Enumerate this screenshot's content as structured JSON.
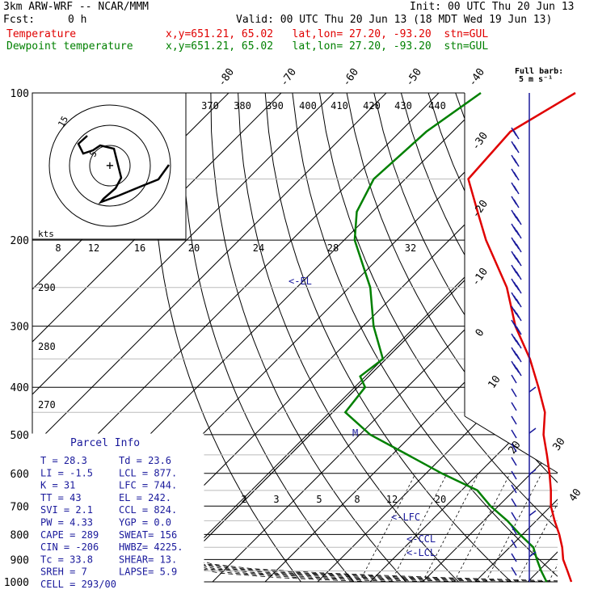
{
  "header": {
    "model": "3km ARW-WRF -- NCAR/MMM",
    "init": "Init: 00 UTC Thu 20 Jun 13",
    "fcst_label": "Fcst:",
    "fcst_value": "0 h",
    "valid": "Valid: 00 UTC Thu 20 Jun 13 (18 MDT Wed 19 Jun 13)",
    "temp_label": "Temperature",
    "temp_info": "x,y=651.21, 65.02   lat,lon= 27.20, -93.20  stn=GUL",
    "dew_label": "Dewpoint temperature",
    "dew_info": "x,y=651.21, 65.02   lat,lon= 27.20, -93.20  stn=GUL",
    "barb_title1": "Full barb:",
    "barb_title2": "5 m s⁻¹"
  },
  "colors": {
    "temperature": "#e00000",
    "dewpoint": "#008000",
    "barbs": "#1a1a9c",
    "labels": "#1a1a9c"
  },
  "hodograph": {
    "kts_label": "kts",
    "ring_labels": [
      "15",
      "5"
    ]
  },
  "parcel_info": {
    "title": "Parcel Info",
    "rows": [
      [
        "T  =   28.3",
        "Td =  23.6"
      ],
      [
        "LI =   -1.5",
        "LCL =  877."
      ],
      [
        "K  =     31",
        "LFC =  744."
      ],
      [
        "TT =     43",
        "EL  =  242."
      ],
      [
        "SVI =   2.1",
        "CCL =  824."
      ],
      [
        "PW =   4.33",
        "YGP =   0.0"
      ],
      [
        "CAPE =  289",
        "SWEAT=  156"
      ],
      [
        "CIN =  -206",
        "HWBZ= 4225."
      ],
      [
        "Tc =   33.8",
        "SHEAR=  13."
      ],
      [
        "SREH =    7",
        "LAPSE=  5.9"
      ],
      [
        "CELL = 293/00",
        ""
      ]
    ]
  },
  "chart_data": {
    "type": "line",
    "diagram": "skew-T log-p",
    "y_axis": {
      "label": "",
      "scale": "log",
      "ticks": [
        100,
        200,
        300,
        400,
        500,
        600,
        700,
        800,
        900,
        1000
      ]
    },
    "isotherm_labels": [
      -80,
      -70,
      -60,
      -50,
      -40,
      -30,
      -20,
      -10,
      0,
      10,
      20,
      30,
      40
    ],
    "theta_labels": [
      370,
      380,
      390,
      400,
      410,
      420,
      430,
      440
    ],
    "low_theta_labels": [
      290,
      280,
      270
    ],
    "mixing_ratio_top": [
      8,
      12,
      16,
      20,
      24,
      28,
      32
    ],
    "mixing_ratio_bottom": [
      2,
      3,
      5,
      8,
      12,
      20
    ],
    "levels": [
      {
        "text": "<-EL"
      },
      {
        "text": "M"
      },
      {
        "text": "<-LFC"
      },
      {
        "text": "<-CCL"
      },
      {
        "text": "<-LCL"
      }
    ],
    "series": [
      {
        "name": "Temperature",
        "points": [
          [
            100,
            -64
          ],
          [
            120,
            -69
          ],
          [
            150,
            -68
          ],
          [
            175,
            -60
          ],
          [
            200,
            -53
          ],
          [
            250,
            -40
          ],
          [
            300,
            -31
          ],
          [
            350,
            -22
          ],
          [
            400,
            -15
          ],
          [
            450,
            -9
          ],
          [
            500,
            -5
          ],
          [
            550,
            -0.5
          ],
          [
            600,
            3.5
          ],
          [
            650,
            7
          ],
          [
            700,
            10
          ],
          [
            750,
            13.5
          ],
          [
            800,
            17
          ],
          [
            850,
            20
          ],
          [
            900,
            22.5
          ],
          [
            950,
            25.5
          ],
          [
            1000,
            28.3
          ]
        ]
      },
      {
        "name": "Dewpoint temperature",
        "points": [
          [
            100,
            -82
          ],
          [
            120,
            -85
          ],
          [
            150,
            -86
          ],
          [
            175,
            -83
          ],
          [
            200,
            -78
          ],
          [
            250,
            -66
          ],
          [
            300,
            -58
          ],
          [
            350,
            -50
          ],
          [
            380,
            -51
          ],
          [
            400,
            -48
          ],
          [
            450,
            -47
          ],
          [
            500,
            -38
          ],
          [
            550,
            -27
          ],
          [
            600,
            -17
          ],
          [
            650,
            -7
          ],
          [
            700,
            -1.5
          ],
          [
            750,
            4.5
          ],
          [
            800,
            9.5
          ],
          [
            850,
            14.5
          ],
          [
            900,
            17.5
          ],
          [
            950,
            20.5
          ],
          [
            1000,
            23.6
          ]
        ]
      }
    ],
    "grid": true
  }
}
